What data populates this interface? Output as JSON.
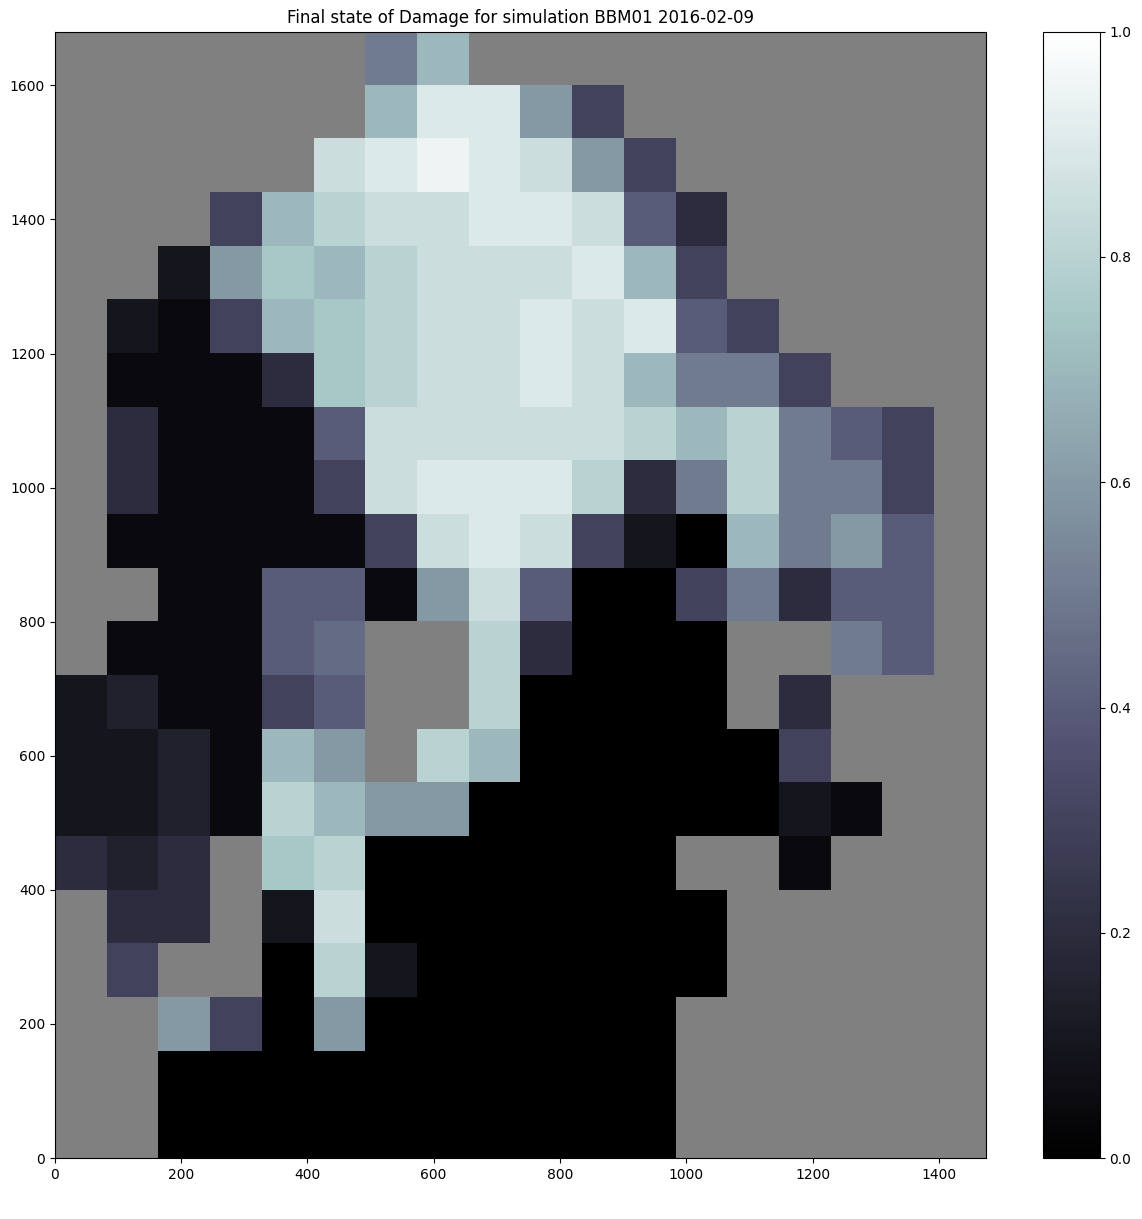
{
  "chart_data": {
    "type": "heatmap",
    "title": "Final state of Damage for simulation BBM01 2016-02-09",
    "color": "bone",
    "xlim": [
      0,
      1474
    ],
    "ylim": [
      0,
      1680
    ],
    "xticks": [
      0,
      200,
      400,
      600,
      800,
      1000,
      1200,
      1400
    ],
    "yticks": [
      0,
      200,
      400,
      600,
      800,
      1000,
      1200,
      1400,
      1600
    ],
    "colorbar": {
      "range": [
        0,
        1
      ],
      "ticks": [
        {
          "value": 0,
          "label": "0.0"
        },
        0.2,
        0.4,
        0.6,
        0.8,
        {
          "value": 1,
          "label": "1.0"
        }
      ]
    },
    "cells": [
      [
        null,
        null,
        null,
        null,
        null,
        null,
        0.5,
        0.7,
        null,
        null,
        null,
        null,
        null,
        null,
        null,
        null,
        null,
        null
      ],
      [
        null,
        null,
        null,
        null,
        null,
        null,
        0.7,
        0.9,
        0.9,
        0.6,
        0.3,
        null,
        null,
        null,
        null,
        null,
        null,
        null
      ],
      [
        null,
        null,
        null,
        null,
        null,
        0.85,
        0.9,
        0.95,
        0.9,
        0.85,
        0.6,
        0.3,
        null,
        null,
        null,
        null,
        null,
        null
      ],
      [
        null,
        null,
        null,
        0.3,
        0.7,
        0.8,
        0.85,
        0.85,
        0.9,
        0.9,
        0.85,
        0.4,
        0.2,
        null,
        null,
        null,
        null,
        null
      ],
      [
        null,
        null,
        0.1,
        0.6,
        0.75,
        0.7,
        0.8,
        0.85,
        0.85,
        0.85,
        0.9,
        0.7,
        0.3,
        null,
        null,
        null,
        null,
        null
      ],
      [
        null,
        0.1,
        0.05,
        0.3,
        0.7,
        0.75,
        0.8,
        0.85,
        0.85,
        0.9,
        0.85,
        0.9,
        0.4,
        0.3,
        null,
        null,
        null,
        null
      ],
      [
        null,
        0.05,
        0.05,
        0.05,
        0.2,
        0.75,
        0.8,
        0.85,
        0.85,
        0.9,
        0.85,
        0.7,
        0.5,
        0.5,
        0.3,
        null,
        null,
        null
      ],
      [
        null,
        0.2,
        0.05,
        0.05,
        0.05,
        0.4,
        0.85,
        0.85,
        0.85,
        0.85,
        0.85,
        0.8,
        0.7,
        0.8,
        0.5,
        0.4,
        0.3,
        null
      ],
      [
        null,
        0.2,
        0.05,
        0.05,
        0.05,
        0.3,
        0.85,
        0.9,
        0.9,
        0.9,
        0.8,
        0.2,
        0.5,
        0.8,
        0.5,
        0.5,
        0.3,
        null
      ],
      [
        null,
        0.05,
        0.05,
        0.05,
        0.05,
        0.05,
        0.3,
        0.85,
        0.9,
        0.85,
        0.3,
        0.1,
        0,
        0.7,
        0.5,
        0.6,
        0.4,
        null
      ],
      [
        null,
        null,
        0.05,
        0.05,
        0.4,
        0.4,
        0.05,
        0.6,
        0.85,
        0.4,
        0,
        0,
        0.3,
        0.5,
        0.2,
        0.4,
        0.4,
        null
      ],
      [
        null,
        0.05,
        0.05,
        0.05,
        0.4,
        0.45,
        null,
        null,
        0.8,
        0.2,
        0,
        0,
        0,
        null,
        null,
        0.5,
        0.4,
        null
      ],
      [
        0.1,
        0.15,
        0.05,
        0.05,
        0.3,
        0.4,
        null,
        null,
        0.8,
        0,
        0,
        0,
        0,
        null,
        0.2,
        null,
        null,
        null
      ],
      [
        0.1,
        0.1,
        0.15,
        0.05,
        0.7,
        0.6,
        null,
        0.8,
        0.7,
        0,
        0,
        0,
        0,
        0,
        0.3,
        null,
        null,
        null
      ],
      [
        0.1,
        0.1,
        0.15,
        0.05,
        0.8,
        0.7,
        0.6,
        0.6,
        0,
        0,
        0,
        0,
        0,
        0,
        0.1,
        0.05,
        null,
        null
      ],
      [
        0.2,
        0.15,
        0.2,
        null,
        0.75,
        0.8,
        0,
        0,
        0,
        0,
        0,
        0,
        null,
        null,
        0.05,
        null,
        null,
        null
      ],
      [
        null,
        0.2,
        0.2,
        null,
        0.1,
        0.85,
        0,
        0,
        0,
        0,
        0,
        0,
        0,
        null,
        null,
        null,
        null,
        null
      ],
      [
        null,
        0.3,
        null,
        null,
        0,
        0.8,
        0.1,
        0,
        0,
        0,
        0,
        0,
        0,
        null,
        null,
        null,
        null,
        null
      ],
      [
        null,
        null,
        0.6,
        0.3,
        0,
        0.6,
        0,
        0,
        0,
        0,
        0,
        0,
        null,
        null,
        null,
        null,
        null,
        null
      ],
      [
        null,
        null,
        0,
        0,
        0,
        0,
        0,
        0,
        0,
        0,
        0,
        0,
        null,
        null,
        null,
        null,
        null,
        null
      ],
      [
        null,
        null,
        0,
        0,
        0,
        0,
        0,
        0,
        0,
        0,
        0,
        0,
        null,
        null,
        null,
        null,
        null,
        null
      ]
    ]
  }
}
